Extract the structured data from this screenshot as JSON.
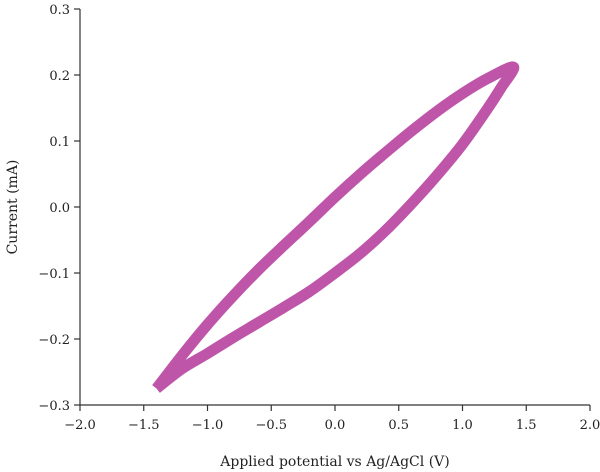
{
  "chart_data": {
    "type": "line",
    "title": "",
    "xlabel": "Applied potential vs Ag/AgCl (V)",
    "ylabel": "Current (mA)",
    "xlim": [
      -2.0,
      2.0
    ],
    "ylim": [
      -0.3,
      0.3
    ],
    "x_ticks": [
      "−2.0",
      "−1.5",
      "−1.0",
      "−0.5",
      "0.0",
      "0.5",
      "1.0",
      "1.5",
      "2.0"
    ],
    "y_ticks": [
      "0.3",
      "0.2",
      "0.1",
      "0.0",
      "−0.1",
      "−0.2",
      "−0.3"
    ],
    "grid": false,
    "legend": "none",
    "series": [
      {
        "color": "#BF55A9",
        "x": [
          -1.4,
          -1.2,
          -1.0,
          -0.8,
          -0.6,
          -0.4,
          -0.2,
          0.0,
          0.2,
          0.4,
          0.6,
          0.8,
          1.0,
          1.2,
          1.4,
          1.3,
          1.2,
          1.0,
          0.8,
          0.6,
          0.4,
          0.2,
          0.0,
          -0.2,
          -0.4,
          -0.6,
          -0.8,
          -1.0,
          -1.2,
          -1.4
        ],
        "y": [
          -0.275,
          -0.225,
          -0.178,
          -0.135,
          -0.095,
          -0.058,
          -0.022,
          0.015,
          0.05,
          0.083,
          0.115,
          0.145,
          0.172,
          0.195,
          0.212,
          0.18,
          0.15,
          0.095,
          0.048,
          0.005,
          -0.035,
          -0.07,
          -0.1,
          -0.128,
          -0.152,
          -0.175,
          -0.198,
          -0.222,
          -0.245,
          -0.275
        ]
      }
    ]
  }
}
